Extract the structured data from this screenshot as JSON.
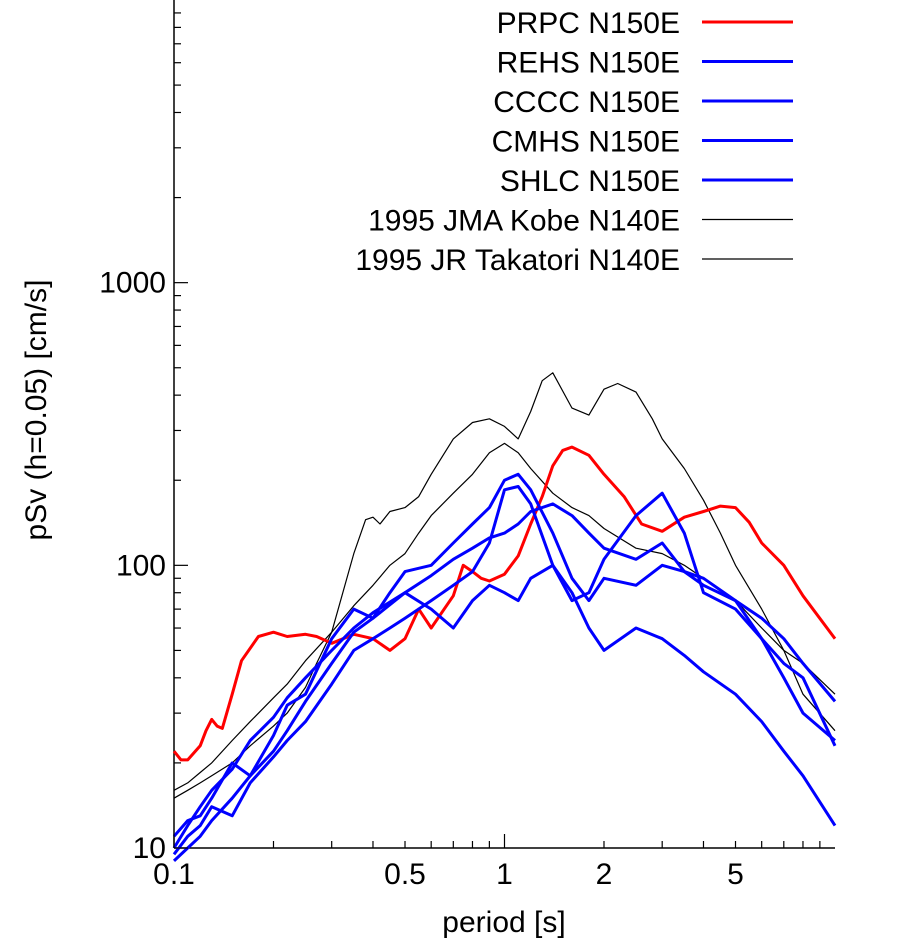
{
  "chart_data": {
    "type": "line",
    "title": "",
    "xlabel": "period [s]",
    "ylabel": "pSv (h=0.05) [cm/s]",
    "xscale": "log",
    "yscale": "log",
    "xlim": [
      0.1,
      10
    ],
    "ylim": [
      10,
      10000
    ],
    "xticks": [
      {
        "value": 0.1,
        "label": "0.1"
      },
      {
        "value": 0.5,
        "label": "0.5"
      },
      {
        "value": 1,
        "label": "1"
      },
      {
        "value": 2,
        "label": "2"
      },
      {
        "value": 5,
        "label": "5"
      }
    ],
    "yticks": [
      {
        "value": 10,
        "label": "10"
      },
      {
        "value": 100,
        "label": "100"
      },
      {
        "value": 1000,
        "label": "1000"
      }
    ],
    "grid": false,
    "legend_position": "top-right",
    "series": [
      {
        "name": "PRPC N150E",
        "color": "#ff0000",
        "width": 3,
        "x": [
          0.1,
          0.105,
          0.11,
          0.12,
          0.125,
          0.13,
          0.135,
          0.14,
          0.15,
          0.16,
          0.18,
          0.2,
          0.22,
          0.25,
          0.27,
          0.3,
          0.35,
          0.4,
          0.45,
          0.5,
          0.55,
          0.6,
          0.7,
          0.75,
          0.8,
          0.85,
          0.9,
          1.0,
          1.1,
          1.2,
          1.3,
          1.4,
          1.5,
          1.6,
          1.8,
          2.0,
          2.3,
          2.6,
          3.0,
          3.5,
          4.0,
          4.5,
          5.0,
          5.5,
          6.0,
          7.0,
          8.0,
          10.0
        ],
        "y": [
          22,
          20.5,
          20.5,
          23,
          26,
          28.5,
          27,
          26.5,
          35,
          46,
          56,
          58,
          56,
          57,
          56,
          53,
          57,
          55,
          50,
          55,
          70,
          60,
          78,
          100,
          95,
          90,
          88,
          93,
          108,
          140,
          175,
          225,
          255,
          262,
          245,
          210,
          175,
          140,
          132,
          148,
          155,
          162,
          160,
          142,
          120,
          100,
          78,
          55
        ]
      },
      {
        "name": "REHS N150E",
        "color": "#0000ff",
        "width": 3,
        "x": [
          0.1,
          0.11,
          0.12,
          0.13,
          0.15,
          0.17,
          0.2,
          0.22,
          0.25,
          0.3,
          0.35,
          0.4,
          0.5,
          0.6,
          0.7,
          0.8,
          0.9,
          1.0,
          1.1,
          1.2,
          1.4,
          1.6,
          1.8,
          2.0,
          2.5,
          3.0,
          3.5,
          4.0,
          5.0,
          6.0,
          7.0,
          8.0,
          10.0
        ],
        "y": [
          10,
          12,
          14,
          16,
          19,
          24,
          29,
          34,
          40,
          50,
          60,
          68,
          80,
          92,
          105,
          115,
          125,
          130,
          140,
          155,
          165,
          150,
          130,
          115,
          105,
          120,
          95,
          85,
          75,
          65,
          55,
          45,
          33
        ]
      },
      {
        "name": "CCCC N150E",
        "color": "#0000ff",
        "width": 3,
        "x": [
          0.1,
          0.11,
          0.12,
          0.13,
          0.15,
          0.17,
          0.2,
          0.22,
          0.25,
          0.3,
          0.35,
          0.4,
          0.45,
          0.5,
          0.6,
          0.7,
          0.8,
          0.9,
          1.0,
          1.1,
          1.2,
          1.4,
          1.6,
          1.8,
          2.0,
          2.5,
          3.0,
          3.5,
          4.0,
          5.0,
          6.0,
          7.0,
          8.0,
          10.0
        ],
        "y": [
          11,
          12.5,
          13,
          15,
          20,
          18,
          25,
          32,
          35,
          55,
          70,
          65,
          80,
          95,
          100,
          120,
          140,
          160,
          200,
          210,
          185,
          130,
          90,
          75,
          90,
          85,
          100,
          95,
          90,
          75,
          55,
          40,
          30,
          24
        ]
      },
      {
        "name": "CMHS N150E",
        "color": "#0000ff",
        "width": 3,
        "x": [
          0.1,
          0.11,
          0.12,
          0.13,
          0.15,
          0.17,
          0.2,
          0.22,
          0.25,
          0.3,
          0.35,
          0.4,
          0.45,
          0.5,
          0.6,
          0.7,
          0.8,
          0.9,
          1.0,
          1.1,
          1.2,
          1.4,
          1.6,
          1.8,
          2.0,
          2.5,
          3.0,
          3.5,
          4.0,
          5.0,
          6.0,
          7.0,
          8.0,
          10.0
        ],
        "y": [
          9.5,
          11,
          12,
          14,
          13,
          17,
          21,
          24,
          28,
          38,
          50,
          55,
          60,
          65,
          75,
          85,
          95,
          120,
          185,
          190,
          165,
          100,
          75,
          80,
          105,
          150,
          180,
          130,
          80,
          70,
          55,
          45,
          40,
          23
        ]
      },
      {
        "name": "SHLC N150E",
        "color": "#0000ff",
        "width": 3,
        "x": [
          0.1,
          0.11,
          0.12,
          0.13,
          0.15,
          0.17,
          0.2,
          0.22,
          0.25,
          0.3,
          0.35,
          0.4,
          0.5,
          0.6,
          0.7,
          0.8,
          0.9,
          1.0,
          1.1,
          1.2,
          1.4,
          1.6,
          1.8,
          2.0,
          2.5,
          3.0,
          3.5,
          4.0,
          5.0,
          6.0,
          7.0,
          8.0,
          10.0
        ],
        "y": [
          9,
          10,
          11,
          12.5,
          15,
          18,
          22,
          26,
          33,
          45,
          58,
          65,
          80,
          70,
          60,
          75,
          85,
          80,
          75,
          90,
          100,
          80,
          60,
          50,
          60,
          55,
          48,
          42,
          35,
          28,
          22,
          18,
          12
        ]
      },
      {
        "name": "1995 JMA Kobe N140E",
        "color": "#000000",
        "width": 1.2,
        "x": [
          0.1,
          0.11,
          0.12,
          0.13,
          0.15,
          0.17,
          0.2,
          0.22,
          0.25,
          0.3,
          0.35,
          0.4,
          0.45,
          0.5,
          0.55,
          0.6,
          0.7,
          0.8,
          0.9,
          1.0,
          1.1,
          1.2,
          1.4,
          1.6,
          1.8,
          2.0,
          2.5,
          3.0,
          3.5,
          4.0,
          5.0,
          6.0,
          7.0,
          8.0,
          10.0
        ],
        "y": [
          16,
          17,
          18.5,
          20,
          24,
          28,
          34,
          38,
          46,
          58,
          72,
          85,
          100,
          110,
          130,
          150,
          180,
          210,
          250,
          270,
          250,
          220,
          180,
          160,
          150,
          135,
          115,
          110,
          100,
          90,
          75,
          60,
          50,
          45,
          35
        ]
      },
      {
        "name": "1995 JR Takatori N140E",
        "color": "#000000",
        "width": 1.2,
        "x": [
          0.1,
          0.11,
          0.12,
          0.13,
          0.15,
          0.17,
          0.2,
          0.22,
          0.25,
          0.27,
          0.3,
          0.35,
          0.38,
          0.4,
          0.42,
          0.45,
          0.5,
          0.55,
          0.6,
          0.7,
          0.8,
          0.9,
          1.0,
          1.1,
          1.2,
          1.3,
          1.4,
          1.6,
          1.8,
          2.0,
          2.2,
          2.5,
          2.8,
          3.0,
          3.5,
          4.0,
          4.5,
          5.0,
          6.0,
          7.0,
          8.0,
          10.0
        ],
        "y": [
          15,
          16,
          17,
          18,
          20,
          23,
          27,
          30,
          37,
          45,
          58,
          110,
          145,
          148,
          140,
          155,
          160,
          175,
          210,
          280,
          320,
          330,
          310,
          280,
          350,
          450,
          480,
          360,
          340,
          420,
          440,
          410,
          330,
          280,
          220,
          170,
          130,
          100,
          70,
          50,
          35,
          26
        ]
      }
    ]
  }
}
